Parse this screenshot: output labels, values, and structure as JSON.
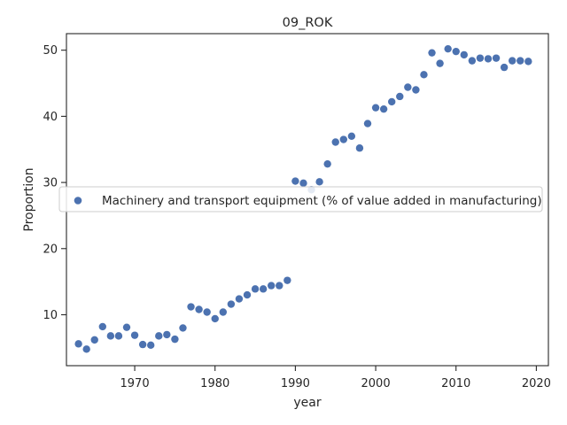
{
  "chart_data": {
    "type": "scatter",
    "title": "09_ROK",
    "xlabel": "year",
    "ylabel": "Proportion",
    "xlim": [
      1961.5,
      2021.5
    ],
    "ylim": [
      2.3,
      52.5
    ],
    "xticks": [
      1970,
      1980,
      1990,
      2000,
      2010,
      2020
    ],
    "yticks": [
      10,
      20,
      30,
      40,
      50
    ],
    "grid": false,
    "legend_position": "center",
    "color": "#4c72b0",
    "series": [
      {
        "name": "Machinery and transport equipment (% of value added in manufacturing)",
        "x": [
          1963,
          1964,
          1965,
          1966,
          1967,
          1968,
          1969,
          1970,
          1971,
          1972,
          1973,
          1974,
          1975,
          1976,
          1977,
          1978,
          1979,
          1980,
          1981,
          1982,
          1983,
          1984,
          1985,
          1986,
          1987,
          1988,
          1989,
          1990,
          1991,
          1992,
          1993,
          1994,
          1995,
          1996,
          1997,
          1998,
          1999,
          2000,
          2001,
          2002,
          2003,
          2004,
          2005,
          2006,
          2007,
          2008,
          2009,
          2010,
          2011,
          2012,
          2013,
          2014,
          2015,
          2016,
          2017,
          2018,
          2019
        ],
        "y": [
          5.6,
          4.8,
          6.2,
          8.2,
          6.8,
          6.8,
          8.1,
          6.9,
          5.5,
          5.4,
          6.8,
          7.0,
          6.3,
          8.0,
          11.2,
          10.8,
          10.4,
          9.4,
          10.4,
          11.6,
          12.4,
          13.0,
          13.9,
          13.9,
          14.4,
          14.4,
          15.2,
          30.2,
          29.9,
          28.9,
          30.1,
          32.8,
          36.1,
          36.5,
          37.0,
          35.2,
          38.9,
          41.3,
          41.1,
          42.2,
          43.0,
          44.4,
          44.0,
          46.3,
          49.6,
          48.0,
          50.2,
          49.8,
          49.3,
          48.4,
          48.8,
          48.7,
          48.8,
          47.4,
          48.4,
          48.4,
          48.3
        ]
      }
    ]
  }
}
